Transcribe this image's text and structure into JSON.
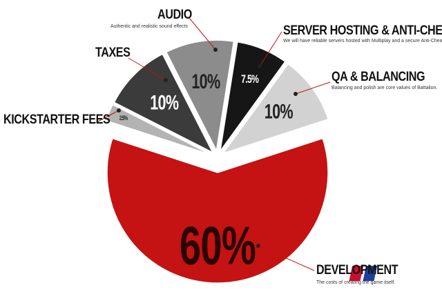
{
  "chart_data": {
    "type": "pie",
    "categories": [
      "KICKSTARTER FEES",
      "TAXES",
      "AUDIO",
      "SERVER HOSTING & ANTI-CHEAT",
      "QA & BALANCING",
      "DEVELOPMENT"
    ],
    "descriptions": [
      null,
      null,
      "Authentic and realistic sound effects",
      "We will have reliable servers hosted with Multiplay and a secure Anti-Cheat system",
      "Balancing and polish are core values of Battalion.",
      "The costs of creating the game itself."
    ],
    "values": [
      2.5,
      10,
      10,
      7.5,
      10,
      60
    ],
    "value_labels": [
      "2.5%",
      "10%",
      "10%",
      "7.5%",
      "10%",
      "60%"
    ],
    "colors": [
      "#b3b3b3",
      "#3b3b3b",
      "#8c8c8c",
      "#161616",
      "#d2d2d2",
      "#c51212"
    ]
  }
}
